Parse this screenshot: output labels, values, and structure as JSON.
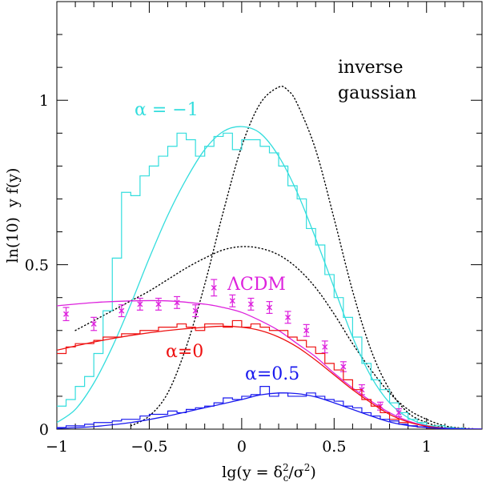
{
  "colors": {
    "cyan": "#33dddd",
    "magenta": "#dd22dd",
    "red": "#ee1111",
    "blue": "#1a1aee",
    "black": "#000000"
  },
  "chart_data": {
    "type": "line",
    "xlabel_parts": [
      "lg(y = δ",
      "2",
      "c",
      "/σ",
      "2",
      ")"
    ],
    "ylabel": "ln(10)  y f(y)",
    "xlim": [
      -1,
      1.3
    ],
    "ylim": [
      0,
      1.3
    ],
    "xticks": [
      {
        "value": -1,
        "label": "−1"
      },
      {
        "value": -0.5,
        "label": "−0.5"
      },
      {
        "value": 0,
        "label": "0"
      },
      {
        "value": 0.5,
        "label": "0.5"
      },
      {
        "value": 1,
        "label": "1"
      }
    ],
    "yticks": [
      {
        "value": 0,
        "label": "0"
      },
      {
        "value": 0.5,
        "label": "0.5"
      },
      {
        "value": 1,
        "label": "1"
      }
    ],
    "annotations": {
      "inverse_gaussian": [
        "inverse",
        "gaussian"
      ],
      "alpha_m1": "α = −1",
      "lcdm": "ΛCDM",
      "alpha_0": "α=0",
      "alpha_05": "α=0.5"
    },
    "series": [
      {
        "key": "ig_upper",
        "style": "dotted",
        "color": "black",
        "x": [
          -0.6,
          -0.5,
          -0.4,
          -0.3,
          -0.2,
          -0.1,
          0,
          0.1,
          0.2,
          0.25,
          0.3,
          0.4,
          0.5,
          0.6,
          0.7,
          0.8,
          0.9,
          1.0,
          1.1,
          1.2,
          1.3
        ],
        "y": [
          0.01,
          0.04,
          0.11,
          0.25,
          0.44,
          0.66,
          0.86,
          0.99,
          1.04,
          1.03,
          0.99,
          0.85,
          0.64,
          0.42,
          0.24,
          0.12,
          0.05,
          0.02,
          0.005,
          0.001,
          0
        ]
      },
      {
        "key": "ig_lower",
        "style": "dotted",
        "color": "black",
        "x": [
          -0.9,
          -0.8,
          -0.7,
          -0.6,
          -0.5,
          -0.4,
          -0.3,
          -0.2,
          -0.1,
          0,
          0.1,
          0.2,
          0.3,
          0.4,
          0.5,
          0.6,
          0.7,
          0.8,
          0.9,
          1.0,
          1.1,
          1.2,
          1.3
        ],
        "y": [
          0.3,
          0.33,
          0.36,
          0.39,
          0.42,
          0.455,
          0.49,
          0.52,
          0.545,
          0.555,
          0.55,
          0.53,
          0.49,
          0.43,
          0.35,
          0.26,
          0.18,
          0.11,
          0.06,
          0.03,
          0.01,
          0.003,
          0
        ]
      },
      {
        "key": "alpha_m1_fit",
        "style": "solid",
        "color": "cyan",
        "x": [
          -1,
          -0.9,
          -0.8,
          -0.7,
          -0.6,
          -0.5,
          -0.4,
          -0.3,
          -0.2,
          -0.1,
          0,
          0.1,
          0.2,
          0.3,
          0.4,
          0.5,
          0.6,
          0.7,
          0.8,
          0.9,
          1.0,
          1.1,
          1.2,
          1.3
        ],
        "y": [
          0.02,
          0.06,
          0.14,
          0.25,
          0.38,
          0.52,
          0.65,
          0.76,
          0.85,
          0.905,
          0.92,
          0.9,
          0.83,
          0.72,
          0.58,
          0.43,
          0.28,
          0.16,
          0.08,
          0.035,
          0.012,
          0.003,
          0.001,
          0
        ]
      },
      {
        "key": "alpha_m1_hist",
        "style": "step",
        "color": "cyan",
        "edges": [
          -1,
          -0.95,
          -0.9,
          -0.85,
          -0.8,
          -0.75,
          -0.7,
          -0.65,
          -0.6,
          -0.55,
          -0.5,
          -0.45,
          -0.4,
          -0.35,
          -0.3,
          -0.25,
          -0.2,
          -0.15,
          -0.1,
          -0.05,
          0,
          0.05,
          0.1,
          0.15,
          0.2,
          0.25,
          0.3,
          0.35,
          0.4,
          0.45,
          0.5,
          0.55,
          0.6,
          0.65,
          0.7,
          0.75,
          0.8,
          0.85,
          0.9,
          0.95,
          1.0,
          1.05,
          1.1,
          1.15,
          1.2,
          1.25,
          1.3
        ],
        "values": [
          0.07,
          0.09,
          0.13,
          0.16,
          0.23,
          0.36,
          0.52,
          0.72,
          0.71,
          0.77,
          0.8,
          0.83,
          0.86,
          0.9,
          0.88,
          0.83,
          0.86,
          0.89,
          0.9,
          0.85,
          0.88,
          0.88,
          0.86,
          0.84,
          0.8,
          0.74,
          0.7,
          0.61,
          0.56,
          0.47,
          0.4,
          0.34,
          0.28,
          0.2,
          0.15,
          0.12,
          0.08,
          0.05,
          0.03,
          0.02,
          0.01,
          0.01,
          0.005,
          0.003,
          0.001,
          0
        ]
      },
      {
        "key": "lcdm_fit",
        "style": "solid",
        "color": "magenta",
        "x": [
          -1,
          -0.8,
          -0.6,
          -0.4,
          -0.2,
          -0.1,
          0,
          0.1,
          0.2,
          0.3,
          0.4,
          0.5,
          0.6,
          0.7,
          0.8,
          0.9,
          1.0,
          1.1,
          1.2,
          1.3
        ],
        "y": [
          0.375,
          0.385,
          0.39,
          0.39,
          0.38,
          0.37,
          0.355,
          0.33,
          0.3,
          0.26,
          0.22,
          0.17,
          0.125,
          0.085,
          0.05,
          0.025,
          0.01,
          0.003,
          0.001,
          0
        ]
      },
      {
        "key": "lcdm_points",
        "style": "points",
        "color": "magenta",
        "x": [
          -0.95,
          -0.8,
          -0.65,
          -0.55,
          -0.45,
          -0.35,
          -0.25,
          -0.15,
          -0.05,
          0.05,
          0.15,
          0.25,
          0.35,
          0.45,
          0.55,
          0.65,
          0.75,
          0.85
        ],
        "y": [
          0.35,
          0.32,
          0.36,
          0.38,
          0.38,
          0.385,
          0.36,
          0.43,
          0.39,
          0.38,
          0.37,
          0.34,
          0.3,
          0.25,
          0.19,
          0.12,
          0.07,
          0.05
        ],
        "err": [
          0.02,
          0.02,
          0.018,
          0.018,
          0.018,
          0.018,
          0.018,
          0.025,
          0.018,
          0.018,
          0.018,
          0.018,
          0.018,
          0.018,
          0.015,
          0.015,
          0.012,
          0.012
        ]
      },
      {
        "key": "alpha_0_fit",
        "style": "solid",
        "color": "red",
        "x": [
          -1,
          -0.8,
          -0.6,
          -0.4,
          -0.2,
          -0.1,
          0,
          0.1,
          0.2,
          0.3,
          0.4,
          0.5,
          0.6,
          0.7,
          0.8,
          0.9,
          1.0,
          1.1,
          1.2,
          1.3
        ],
        "y": [
          0.24,
          0.265,
          0.285,
          0.3,
          0.31,
          0.313,
          0.31,
          0.3,
          0.28,
          0.25,
          0.21,
          0.165,
          0.12,
          0.08,
          0.045,
          0.022,
          0.009,
          0.003,
          0.001,
          0
        ]
      },
      {
        "key": "alpha_0_hist",
        "style": "step",
        "color": "red",
        "edges": [
          -1,
          -0.95,
          -0.9,
          -0.85,
          -0.8,
          -0.75,
          -0.7,
          -0.65,
          -0.6,
          -0.55,
          -0.5,
          -0.45,
          -0.4,
          -0.35,
          -0.3,
          -0.25,
          -0.2,
          -0.15,
          -0.1,
          -0.05,
          0,
          0.05,
          0.1,
          0.15,
          0.2,
          0.25,
          0.3,
          0.35,
          0.4,
          0.45,
          0.5,
          0.55,
          0.6,
          0.65,
          0.7,
          0.75,
          0.8,
          0.85,
          0.9,
          0.95,
          1.0,
          1.05,
          1.1,
          1.15,
          1.2,
          1.25,
          1.3
        ],
        "values": [
          0.23,
          0.25,
          0.26,
          0.26,
          0.27,
          0.28,
          0.28,
          0.29,
          0.29,
          0.3,
          0.3,
          0.31,
          0.31,
          0.32,
          0.31,
          0.3,
          0.32,
          0.32,
          0.31,
          0.33,
          0.31,
          0.32,
          0.31,
          0.3,
          0.3,
          0.28,
          0.27,
          0.25,
          0.23,
          0.2,
          0.18,
          0.15,
          0.12,
          0.09,
          0.07,
          0.05,
          0.03,
          0.02,
          0.01,
          0.006,
          0.003,
          0.002,
          0.001,
          0,
          0,
          0
        ]
      },
      {
        "key": "alpha_05_fit",
        "style": "solid",
        "color": "blue",
        "x": [
          -1,
          -0.8,
          -0.6,
          -0.4,
          -0.2,
          0,
          0.1,
          0.2,
          0.3,
          0.4,
          0.5,
          0.6,
          0.7,
          0.8,
          0.9,
          1.0,
          1.1,
          1.2,
          1.3
        ],
        "y": [
          0.002,
          0.008,
          0.02,
          0.04,
          0.065,
          0.09,
          0.104,
          0.11,
          0.108,
          0.098,
          0.08,
          0.06,
          0.04,
          0.022,
          0.011,
          0.005,
          0.002,
          0.001,
          0
        ]
      },
      {
        "key": "alpha_05_hist",
        "style": "step",
        "color": "blue",
        "edges": [
          -1,
          -0.95,
          -0.9,
          -0.85,
          -0.8,
          -0.75,
          -0.7,
          -0.65,
          -0.6,
          -0.55,
          -0.5,
          -0.45,
          -0.4,
          -0.35,
          -0.3,
          -0.25,
          -0.2,
          -0.15,
          -0.1,
          -0.05,
          0,
          0.05,
          0.1,
          0.15,
          0.2,
          0.25,
          0.3,
          0.35,
          0.4,
          0.45,
          0.5,
          0.55,
          0.6,
          0.65,
          0.7,
          0.75,
          0.8,
          0.85,
          0.9,
          0.95,
          1.0,
          1.05,
          1.1,
          1.15,
          1.2,
          1.25,
          1.3
        ],
        "values": [
          0.005,
          0.01,
          0.01,
          0.015,
          0.02,
          0.02,
          0.025,
          0.03,
          0.03,
          0.04,
          0.045,
          0.045,
          0.055,
          0.05,
          0.06,
          0.065,
          0.07,
          0.08,
          0.095,
          0.09,
          0.1,
          0.105,
          0.13,
          0.1,
          0.11,
          0.1,
          0.1,
          0.11,
          0.1,
          0.09,
          0.085,
          0.07,
          0.065,
          0.05,
          0.04,
          0.03,
          0.025,
          0.015,
          0.01,
          0.007,
          0.004,
          0.003,
          0.002,
          0.001,
          0,
          0
        ]
      }
    ]
  }
}
